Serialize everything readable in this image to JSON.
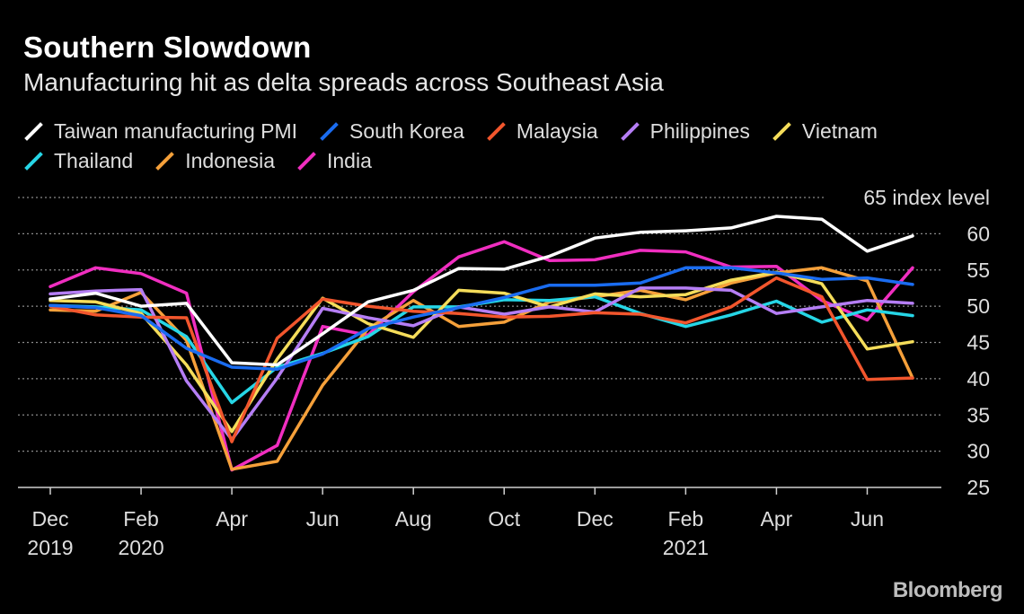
{
  "header": {
    "title": "Southern Slowdown",
    "subtitle": "Manufacturing hit as delta spreads across Southeast Asia"
  },
  "source_logo": "Bloomberg",
  "chart_data": {
    "type": "line",
    "title": "Southern Slowdown",
    "subtitle": "Manufacturing hit as delta spreads across Southeast Asia",
    "ylabel": "index level",
    "ylim": [
      25,
      65
    ],
    "yticks": [
      25,
      30,
      35,
      40,
      45,
      50,
      55,
      60,
      65
    ],
    "top_tick_label": "65 index level",
    "grid": "horizontal dotted",
    "legend_position": "top",
    "x": [
      "2019-12",
      "2020-01",
      "2020-02",
      "2020-03",
      "2020-04",
      "2020-05",
      "2020-06",
      "2020-07",
      "2020-08",
      "2020-09",
      "2020-10",
      "2020-11",
      "2020-12",
      "2021-01",
      "2021-02",
      "2021-03",
      "2021-04",
      "2021-05",
      "2021-06",
      "2021-07"
    ],
    "x_tick_labels": [
      {
        "month": "Dec",
        "year": "2019"
      },
      {
        "month": "",
        "year": ""
      },
      {
        "month": "Feb",
        "year": "2020"
      },
      {
        "month": "",
        "year": ""
      },
      {
        "month": "Apr",
        "year": ""
      },
      {
        "month": "",
        "year": ""
      },
      {
        "month": "Jun",
        "year": ""
      },
      {
        "month": "",
        "year": ""
      },
      {
        "month": "Aug",
        "year": ""
      },
      {
        "month": "",
        "year": ""
      },
      {
        "month": "Oct",
        "year": ""
      },
      {
        "month": "",
        "year": ""
      },
      {
        "month": "Dec",
        "year": ""
      },
      {
        "month": "",
        "year": ""
      },
      {
        "month": "Feb",
        "year": "2021"
      },
      {
        "month": "",
        "year": ""
      },
      {
        "month": "Apr",
        "year": ""
      },
      {
        "month": "",
        "year": ""
      },
      {
        "month": "Jun",
        "year": ""
      },
      {
        "month": "",
        "year": ""
      }
    ],
    "series": [
      {
        "name": "Taiwan manufacturing PMI",
        "color": "#ffffff",
        "values": [
          51.0,
          51.8,
          50.0,
          50.4,
          42.2,
          41.9,
          46.2,
          50.6,
          52.2,
          55.2,
          55.1,
          56.9,
          59.4,
          60.2,
          60.4,
          60.8,
          62.4,
          62.0,
          57.6,
          59.7
        ]
      },
      {
        "name": "South Korea",
        "color": "#1a6cf0",
        "values": [
          50.1,
          49.8,
          48.7,
          44.2,
          41.6,
          41.3,
          43.4,
          46.9,
          48.5,
          49.8,
          51.2,
          52.9,
          52.9,
          53.2,
          55.3,
          55.3,
          54.6,
          53.7,
          53.9,
          53.0
        ]
      },
      {
        "name": "Malaysia",
        "color": "#f2562d",
        "values": [
          50.0,
          48.8,
          48.5,
          48.4,
          31.3,
          45.6,
          51.0,
          50.0,
          49.3,
          49.0,
          48.5,
          48.6,
          49.1,
          48.9,
          47.7,
          49.9,
          53.9,
          51.3,
          39.9,
          40.1
        ]
      },
      {
        "name": "Philippines",
        "color": "#b57ef5",
        "values": [
          51.7,
          52.1,
          52.3,
          39.7,
          31.6,
          40.1,
          49.7,
          48.4,
          47.3,
          49.9,
          48.9,
          49.9,
          49.2,
          52.5,
          52.5,
          52.2,
          49.0,
          49.9,
          50.8,
          50.4
        ]
      },
      {
        "name": "Vietnam",
        "color": "#f5dd5a",
        "values": [
          50.8,
          50.6,
          49.0,
          41.9,
          32.7,
          42.7,
          51.1,
          47.6,
          45.7,
          52.2,
          51.8,
          49.9,
          51.7,
          51.3,
          51.6,
          53.6,
          54.7,
          53.1,
          44.1,
          45.1
        ]
      },
      {
        "name": "Thailand",
        "color": "#26d6e6",
        "values": [
          50.1,
          49.9,
          49.5,
          45.8,
          36.7,
          41.6,
          43.5,
          45.8,
          49.9,
          49.9,
          50.9,
          50.8,
          51.3,
          49.0,
          47.2,
          48.8,
          50.7,
          47.8,
          49.5,
          48.7
        ]
      },
      {
        "name": "Indonesia",
        "color": "#f5a03a",
        "values": [
          49.5,
          49.3,
          51.9,
          45.3,
          27.5,
          28.6,
          39.1,
          46.9,
          50.8,
          47.2,
          47.8,
          50.6,
          51.3,
          52.2,
          50.9,
          53.2,
          54.6,
          55.3,
          53.5,
          40.1
        ]
      },
      {
        "name": "India",
        "color": "#f02ec0",
        "values": [
          52.7,
          55.3,
          54.5,
          51.8,
          27.4,
          30.8,
          47.2,
          46.0,
          52.0,
          56.8,
          58.9,
          56.3,
          56.4,
          57.7,
          57.5,
          55.4,
          55.5,
          50.8,
          48.1,
          55.3
        ]
      }
    ]
  }
}
